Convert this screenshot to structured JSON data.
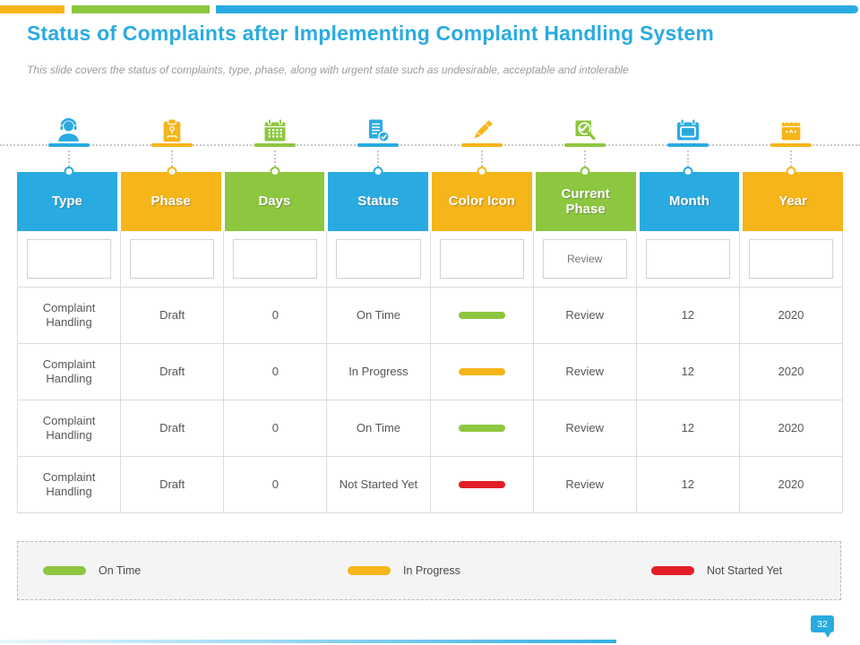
{
  "slide": {
    "title": "Status of Complaints after Implementing Complaint Handling System",
    "subtitle": "This slide covers the status of complaints, type, phase, along with urgent state such as undesirable, acceptable and intolerable",
    "page_number": "32"
  },
  "colors": {
    "blue": "#29ABE2",
    "yellow": "#F6B519",
    "green": "#8DC63F",
    "red": "#E21D25",
    "grid": "#DCDCDC",
    "cell_text": "#565656"
  },
  "timeline": {
    "icons": [
      {
        "name": "support-agent-icon",
        "glyph": "support",
        "color": "blue"
      },
      {
        "name": "clipboard-chart-icon",
        "glyph": "clipboard",
        "color": "yellow"
      },
      {
        "name": "calendar-days-icon",
        "glyph": "calendarGrid",
        "color": "green"
      },
      {
        "name": "document-check-icon",
        "glyph": "docCheck",
        "color": "blue"
      },
      {
        "name": "pen-icon",
        "glyph": "pen",
        "color": "yellow"
      },
      {
        "name": "document-search-icon",
        "glyph": "docSearch",
        "color": "green"
      },
      {
        "name": "calendar-month-icon",
        "glyph": "calendarFrame",
        "color": "blue"
      },
      {
        "name": "calendar-year-icon",
        "glyph": "calendarMarks",
        "color": "yellow"
      }
    ]
  },
  "table": {
    "columns": [
      {
        "label": "Type",
        "color": "blue"
      },
      {
        "label": "Phase",
        "color": "yellow"
      },
      {
        "label": "Days",
        "color": "green"
      },
      {
        "label": "Status",
        "color": "blue"
      },
      {
        "label": "Color Icon",
        "color": "yellow"
      },
      {
        "label": "Current Phase",
        "color": "green"
      },
      {
        "label": "Month",
        "color": "blue"
      },
      {
        "label": "Year",
        "color": "yellow"
      }
    ],
    "filter_values": [
      "",
      "",
      "",
      "",
      "",
      "Review",
      "",
      ""
    ],
    "rows": [
      {
        "type": "Complaint Handling",
        "phase": "Draft",
        "days": "0",
        "status": "On Time",
        "bar_color": "green",
        "current_phase": "Review",
        "month": "12",
        "year": "2020"
      },
      {
        "type": "Complaint Handling",
        "phase": "Draft",
        "days": "0",
        "status": "In Progress",
        "bar_color": "yellow",
        "current_phase": "Review",
        "month": "12",
        "year": "2020"
      },
      {
        "type": "Complaint Handling",
        "phase": "Draft",
        "days": "0",
        "status": "On Time",
        "bar_color": "green",
        "current_phase": "Review",
        "month": "12",
        "year": "2020"
      },
      {
        "type": "Complaint Handling",
        "phase": "Draft",
        "days": "0",
        "status": "Not Started Yet",
        "bar_color": "red",
        "current_phase": "Review",
        "month": "12",
        "year": "2020"
      }
    ]
  },
  "legend": {
    "items": [
      {
        "label": "On Time",
        "color": "green"
      },
      {
        "label": "In Progress",
        "color": "yellow"
      },
      {
        "label": "Not Started Yet",
        "color": "red"
      }
    ]
  }
}
